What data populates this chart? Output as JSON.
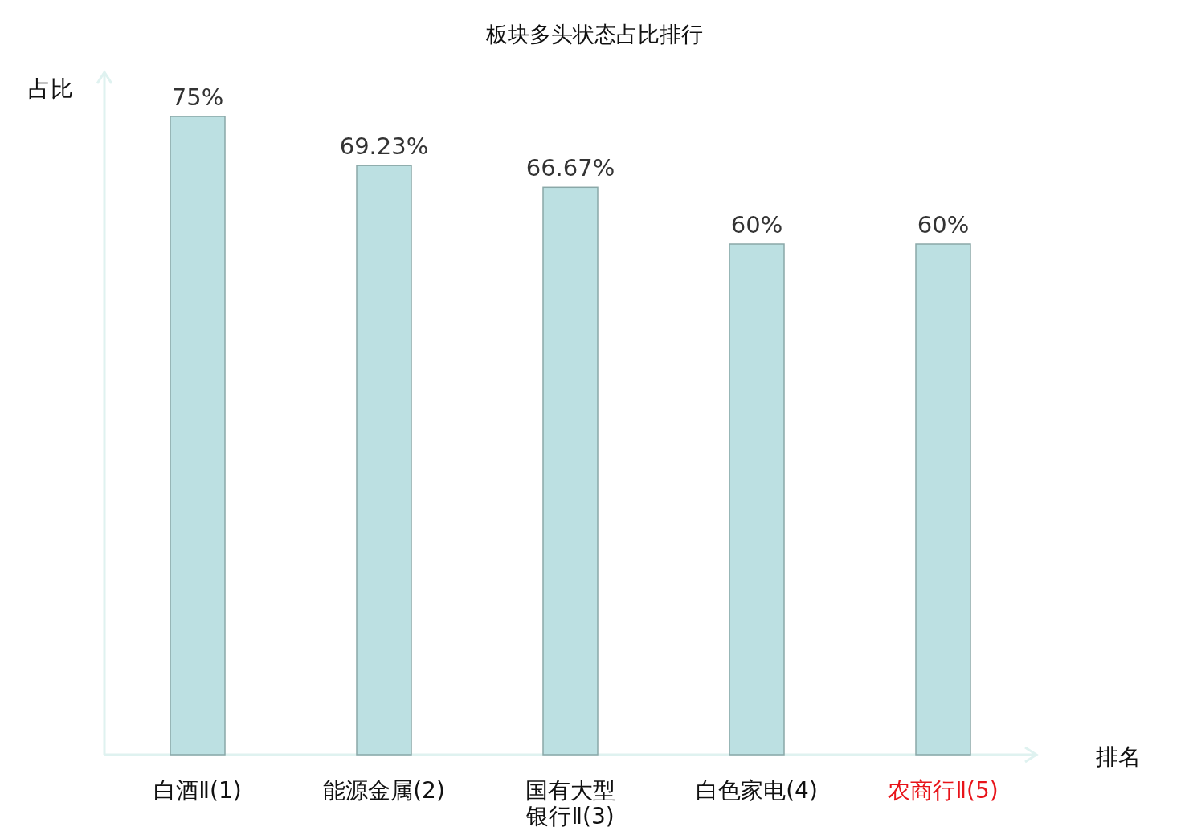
{
  "chart_data": {
    "type": "bar",
    "title": "板块多头状态占比排行",
    "xlabel": "排名",
    "ylabel": "占比",
    "categories": [
      "白酒Ⅱ(1)",
      "能源金属(2)",
      "国有大型银行Ⅱ(3)",
      "白色家电(4)",
      "农商行Ⅱ(5)"
    ],
    "values": [
      75,
      69.23,
      66.67,
      60,
      60
    ],
    "value_labels": [
      "75%",
      "69.23%",
      "66.67%",
      "60%",
      "60%"
    ],
    "color": "#bce0e2"
  }
}
